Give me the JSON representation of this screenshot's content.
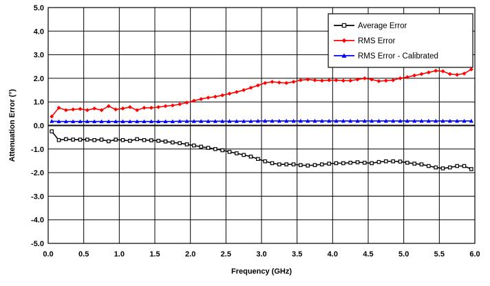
{
  "chart_data": {
    "type": "line",
    "title": "",
    "xlabel": "Frequency (GHz)",
    "ylabel": "Attenuation Error (°)",
    "xlim": [
      0.0,
      6.0
    ],
    "ylim": [
      -5.0,
      5.0
    ],
    "x_ticks": [
      "0.0",
      "0.5",
      "1.0",
      "1.5",
      "2.0",
      "2.5",
      "3.0",
      "3.5",
      "4.0",
      "4.5",
      "5.0",
      "5.5",
      "6.0"
    ],
    "y_ticks": [
      "5.0",
      "4.0",
      "3.0",
      "2.0",
      "1.0",
      "0.0",
      "-1.0",
      "-2.0",
      "-3.0",
      "-4.0",
      "-5.0"
    ],
    "grid": true,
    "legend_position": "top-right",
    "x": [
      0.05,
      0.15,
      0.25,
      0.35,
      0.45,
      0.55,
      0.65,
      0.75,
      0.85,
      0.95,
      1.05,
      1.15,
      1.25,
      1.35,
      1.45,
      1.55,
      1.65,
      1.75,
      1.85,
      1.95,
      2.05,
      2.15,
      2.25,
      2.35,
      2.45,
      2.55,
      2.65,
      2.75,
      2.85,
      2.95,
      3.05,
      3.15,
      3.25,
      3.35,
      3.45,
      3.55,
      3.65,
      3.75,
      3.85,
      3.95,
      4.05,
      4.15,
      4.25,
      4.35,
      4.45,
      4.55,
      4.65,
      4.75,
      4.85,
      4.95,
      5.05,
      5.15,
      5.25,
      5.35,
      5.45,
      5.55,
      5.65,
      5.75,
      5.85,
      5.95
    ],
    "series": [
      {
        "name": "Average Error",
        "color": "#000000",
        "marker": "square",
        "values": [
          -0.25,
          -0.62,
          -0.58,
          -0.6,
          -0.6,
          -0.6,
          -0.62,
          -0.6,
          -0.67,
          -0.6,
          -0.62,
          -0.65,
          -0.58,
          -0.62,
          -0.63,
          -0.65,
          -0.68,
          -0.72,
          -0.75,
          -0.8,
          -0.85,
          -0.9,
          -0.95,
          -1.0,
          -1.05,
          -1.12,
          -1.18,
          -1.25,
          -1.32,
          -1.42,
          -1.52,
          -1.6,
          -1.65,
          -1.65,
          -1.65,
          -1.68,
          -1.7,
          -1.68,
          -1.65,
          -1.62,
          -1.6,
          -1.6,
          -1.58,
          -1.56,
          -1.58,
          -1.6,
          -1.55,
          -1.52,
          -1.52,
          -1.53,
          -1.58,
          -1.62,
          -1.65,
          -1.72,
          -1.78,
          -1.82,
          -1.78,
          -1.72,
          -1.72,
          -1.85
        ]
      },
      {
        "name": "RMS Error",
        "color": "#ff0000",
        "marker": "diamond",
        "values": [
          0.38,
          0.75,
          0.65,
          0.68,
          0.7,
          0.65,
          0.72,
          0.65,
          0.82,
          0.68,
          0.72,
          0.78,
          0.65,
          0.75,
          0.75,
          0.78,
          0.82,
          0.85,
          0.9,
          0.97,
          1.05,
          1.12,
          1.18,
          1.22,
          1.28,
          1.35,
          1.42,
          1.5,
          1.6,
          1.7,
          1.8,
          1.85,
          1.82,
          1.8,
          1.85,
          1.92,
          1.95,
          1.92,
          1.9,
          1.92,
          1.92,
          1.9,
          1.9,
          1.95,
          2.0,
          1.95,
          1.88,
          1.9,
          1.92,
          2.0,
          2.05,
          2.12,
          2.18,
          2.25,
          2.32,
          2.3,
          2.18,
          2.15,
          2.2,
          2.38
        ]
      },
      {
        "name": "RMS Error - Calibrated",
        "color": "#0000ff",
        "marker": "triangle",
        "values": [
          0.18,
          0.17,
          0.17,
          0.17,
          0.17,
          0.17,
          0.17,
          0.17,
          0.17,
          0.17,
          0.17,
          0.17,
          0.17,
          0.17,
          0.17,
          0.17,
          0.17,
          0.17,
          0.18,
          0.18,
          0.18,
          0.18,
          0.18,
          0.18,
          0.18,
          0.18,
          0.18,
          0.18,
          0.18,
          0.19,
          0.19,
          0.19,
          0.19,
          0.19,
          0.19,
          0.19,
          0.19,
          0.19,
          0.19,
          0.19,
          0.19,
          0.19,
          0.19,
          0.19,
          0.19,
          0.19,
          0.19,
          0.19,
          0.19,
          0.19,
          0.19,
          0.19,
          0.19,
          0.19,
          0.19,
          0.19,
          0.19,
          0.19,
          0.19,
          0.19
        ]
      }
    ]
  }
}
